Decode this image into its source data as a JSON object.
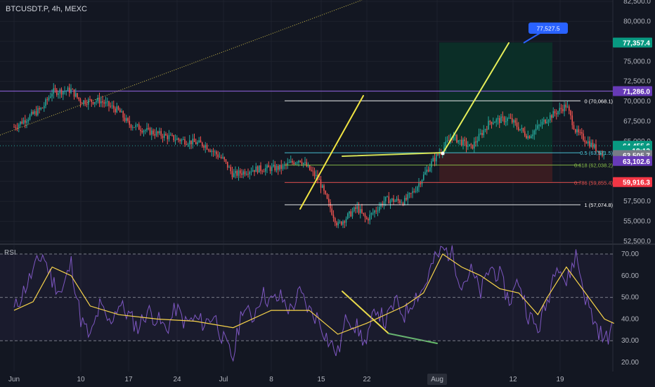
{
  "window": {
    "title": "BTCUSDT.P, 4h, MEXC"
  },
  "colors": {
    "background": "#131722",
    "grid": "#1e222d",
    "candle_up": "#26a69a",
    "candle_down": "#ef5350",
    "trend_line": "#f0e442",
    "rsi_line": "#7e57c2",
    "rsi_ma": "#f7d34a",
    "target_zone": "#0b2f28",
    "stop_zone": "#3a1c22",
    "resistance_line": "#7e57c2",
    "fib_line": "#ffffff"
  },
  "chart_data": [
    {
      "type": "candlestick",
      "title": "BTCUSDT.P, 4h, MEXC",
      "x_tick_labels": [
        "Jun",
        "10",
        "17",
        "24",
        "Jul",
        "8",
        "15",
        "22",
        "Aug",
        "12",
        "19"
      ],
      "y_tick_labels": [
        "82,500.0",
        "80,000.0",
        "77,500.0",
        "75,000.0",
        "72,500.0",
        "70,000.0",
        "67,500.0",
        "65,000.0",
        "62,500.0",
        "60,000.0",
        "57,500.0",
        "55,000.0",
        "52,500.0"
      ],
      "ylim": [
        52500,
        82500
      ],
      "price_path": [
        [
          "Jun 1",
          66800
        ],
        [
          "Jun 4",
          69200
        ],
        [
          "Jun 5",
          71200
        ],
        [
          "Jun 7",
          71400
        ],
        [
          "Jun 8",
          70000
        ],
        [
          "Jun 10",
          70100
        ],
        [
          "Jun 12",
          68800
        ],
        [
          "Jun 13",
          67200
        ],
        [
          "Jun 15",
          66300
        ],
        [
          "Jun 18",
          65300
        ],
        [
          "Jun 21",
          64600
        ],
        [
          "Jun 23",
          62700
        ],
        [
          "Jun 24",
          60800
        ],
        [
          "Jun 26",
          61500
        ],
        [
          "Jun 29",
          61700
        ],
        [
          "Jul 1",
          62800
        ],
        [
          "Jul 3",
          60200
        ],
        [
          "Jul 4",
          57200
        ],
        [
          "Jul 5",
          54500
        ],
        [
          "Jul 7",
          56700
        ],
        [
          "Jul 8",
          55200
        ],
        [
          "Jul 10",
          57700
        ],
        [
          "Jul 12",
          57500
        ],
        [
          "Jul 13",
          58800
        ],
        [
          "Jul 15",
          62600
        ],
        [
          "Jul 17",
          65600
        ],
        [
          "Jul 19",
          64200
        ],
        [
          "Jul 21",
          67500
        ],
        [
          "Jul 23",
          67800
        ],
        [
          "Jul 25",
          65600
        ],
        [
          "Jul 27",
          67900
        ],
        [
          "Jul 29",
          69500
        ],
        [
          "Jul 30",
          66200
        ],
        [
          "Aug 1",
          64200
        ],
        [
          "Aug 2",
          63200
        ]
      ],
      "annotations": {
        "callout": "77,527.5",
        "fib_levels": [
          {
            "label": "0 (70,068.1)",
            "price": 70068.1
          },
          {
            "label": "0.5 (63,571.5)",
            "price": 63571.5
          },
          {
            "label": "0.618 (62,038.2)",
            "price": 62038.2
          },
          {
            "label": "0.786 (59,855.4)",
            "price": 59855.4
          },
          {
            "label": "1 (57,074.8)",
            "price": 57074.8
          }
        ],
        "price_labels": [
          {
            "text": "77,357.4",
            "price": 77357.4,
            "color": "#089981"
          },
          {
            "text": "71,286.0",
            "price": 71286.0,
            "color": "#673ab7"
          },
          {
            "text": "64,455.6",
            "price": 64455.6,
            "color": "#089981"
          },
          {
            "text": "18:12",
            "price": 63870,
            "color": "#089981"
          },
          {
            "text": "63,505.7",
            "price": 63290,
            "color": "#787b86"
          },
          {
            "text": "63,102.6",
            "price": 62550,
            "color": "#673ab7"
          },
          {
            "text": "59,916.3",
            "price": 59916.3,
            "color": "#f23645"
          }
        ],
        "resistance": 71286.0,
        "dotted_line": 64455.6
      }
    },
    {
      "type": "line",
      "title": "RSI",
      "y_tick_labels": [
        "70.00",
        "60.00",
        "50.00",
        "40.00",
        "30.00",
        "20.00"
      ],
      "ylim": [
        18,
        74
      ],
      "levels": [
        70,
        50,
        30
      ],
      "rsi_path": [
        [
          "Jun 1",
          44
        ],
        [
          "Jun 2",
          53
        ],
        [
          "Jun 3",
          62
        ],
        [
          "Jun 4",
          70
        ],
        [
          "Jun 5",
          58
        ],
        [
          "Jun 6",
          52
        ],
        [
          "Jun 7",
          66
        ],
        [
          "Jun 8",
          40
        ],
        [
          "Jun 9",
          31
        ],
        [
          "Jun 10",
          46
        ],
        [
          "Jun 11",
          38
        ],
        [
          "Jun 12",
          47
        ],
        [
          "Jun 13",
          42
        ],
        [
          "Jun 14",
          36
        ],
        [
          "Jun 15",
          44
        ],
        [
          "Jun 16",
          40
        ],
        [
          "Jun 17",
          35
        ],
        [
          "Jun 18",
          45
        ],
        [
          "Jun 19",
          38
        ],
        [
          "Jun 20",
          40
        ],
        [
          "Jun 21",
          38
        ],
        [
          "Jun 22",
          42
        ],
        [
          "Jun 23",
          30
        ],
        [
          "Jun 24",
          22
        ],
        [
          "Jun 25",
          46
        ],
        [
          "Jun 26",
          40
        ],
        [
          "Jun 27",
          52
        ],
        [
          "Jun 28",
          48
        ],
        [
          "Jun 29",
          50
        ],
        [
          "Jun 30",
          44
        ],
        [
          "Jul 1",
          52
        ],
        [
          "Jul 2",
          44
        ],
        [
          "Jul 3",
          40
        ],
        [
          "Jul 4",
          30
        ],
        [
          "Jul 5",
          24
        ],
        [
          "Jul 6",
          42
        ],
        [
          "Jul 7",
          36
        ],
        [
          "Jul 8",
          28
        ],
        [
          "Jul 9",
          46
        ],
        [
          "Jul 10",
          38
        ],
        [
          "Jul 11",
          48
        ],
        [
          "Jul 12",
          42
        ],
        [
          "Jul 13",
          50
        ],
        [
          "Jul 14",
          54
        ],
        [
          "Jul 15",
          66
        ],
        [
          "Jul 16",
          72
        ],
        [
          "Jul 17",
          70
        ],
        [
          "Jul 18",
          56
        ],
        [
          "Jul 19",
          62
        ],
        [
          "Jul 20",
          52
        ],
        [
          "Jul 21",
          64
        ],
        [
          "Jul 22",
          60
        ],
        [
          "Jul 23",
          48
        ],
        [
          "Jul 24",
          58
        ],
        [
          "Jul 25",
          42
        ],
        [
          "Jul 26",
          35
        ],
        [
          "Jul 27",
          48
        ],
        [
          "Jul 28",
          68
        ],
        [
          "Jul 29",
          56
        ],
        [
          "Jul 30",
          70
        ],
        [
          "Jul 31",
          50
        ],
        [
          "Aug 1",
          38
        ],
        [
          "Aug 2",
          30
        ],
        [
          "Aug 3",
          36
        ]
      ],
      "rsi_ma_path": [
        [
          "Jun 1",
          44
        ],
        [
          "Jun 3",
          48
        ],
        [
          "Jun 5",
          64
        ],
        [
          "Jun 7",
          60
        ],
        [
          "Jun 9",
          46
        ],
        [
          "Jun 12",
          42
        ],
        [
          "Jun 16",
          40
        ],
        [
          "Jun 20",
          39
        ],
        [
          "Jun 24",
          36
        ],
        [
          "Jun 28",
          44
        ],
        [
          "Jul 2",
          44
        ],
        [
          "Jul 5",
          33
        ],
        [
          "Jul 8",
          38
        ],
        [
          "Jul 12",
          46
        ],
        [
          "Jul 14",
          52
        ],
        [
          "Jul 16",
          70
        ],
        [
          "Jul 18",
          64
        ],
        [
          "Jul 20",
          60
        ],
        [
          "Jul 22",
          54
        ],
        [
          "Jul 24",
          52
        ],
        [
          "Jul 26",
          42
        ],
        [
          "Jul 27",
          50
        ],
        [
          "Jul 29",
          64
        ],
        [
          "Jul 31",
          52
        ],
        [
          "Aug 2",
          40
        ],
        [
          "Aug 3",
          38
        ]
      ]
    }
  ]
}
